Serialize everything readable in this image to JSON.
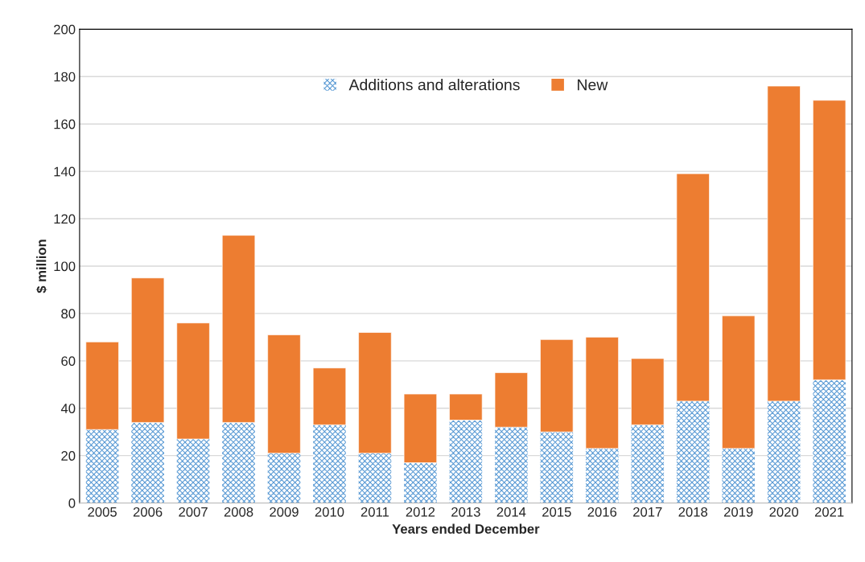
{
  "chart_data": {
    "type": "bar",
    "stacked": true,
    "xlabel": "Years ended December",
    "ylabel": "$ million",
    "categories": [
      "2005",
      "2006",
      "2007",
      "2008",
      "2009",
      "2010",
      "2011",
      "2012",
      "2013",
      "2014",
      "2015",
      "2016",
      "2017",
      "2018",
      "2019",
      "2020",
      "2021"
    ],
    "series": [
      {
        "name": "Additions and alterations",
        "color": "#5b9bd5",
        "values": [
          31,
          34,
          27,
          34,
          21,
          33,
          21,
          17,
          35,
          32,
          30,
          23,
          33,
          43,
          23,
          43,
          52
        ]
      },
      {
        "name": "New",
        "color": "#ed7d31",
        "values": [
          37,
          61,
          49,
          79,
          50,
          24,
          51,
          29,
          11,
          23,
          39,
          47,
          28,
          96,
          56,
          133,
          118
        ]
      }
    ],
    "ylim": [
      0,
      200
    ],
    "yticks": [
      0,
      20,
      40,
      60,
      80,
      100,
      120,
      140,
      160,
      180,
      200
    ],
    "grid": "y",
    "legend": "top"
  }
}
